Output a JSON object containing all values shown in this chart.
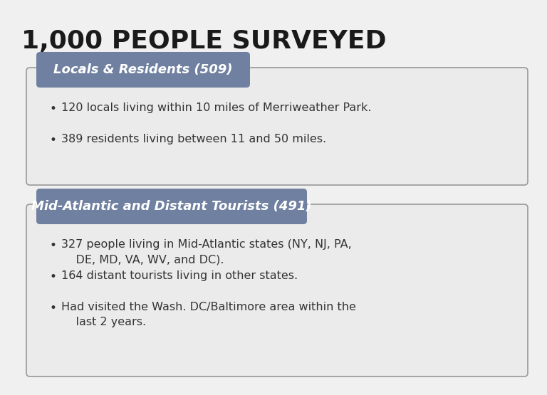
{
  "title": "1,000 PEOPLE SURVEYED",
  "title_fontsize": 26,
  "title_color": "#1a1a1a",
  "background_color": "#f0f0f0",
  "box_bg_color": "#ebebeb",
  "box_border_color": "#999999",
  "badge_color": "#7080a0",
  "badge_text_color": "#ffffff",
  "bullet_text_color": "#333333",
  "section1_badge": "Locals & Residents (509)",
  "section1_bullets": [
    "120 locals living within 10 miles of Merriweather Park.",
    "389 residents living between 11 and 50 miles."
  ],
  "section2_badge": "Mid-Atlantic and Distant Tourists (491)",
  "section2_bullets": [
    "327 people living in Mid-Atlantic states (NY, NJ, PA,\n    DE, MD, VA, WV, and DC).",
    "164 distant tourists living in other states.",
    "Had visited the Wash. DC/Baltimore area within the\n    last 2 years."
  ]
}
